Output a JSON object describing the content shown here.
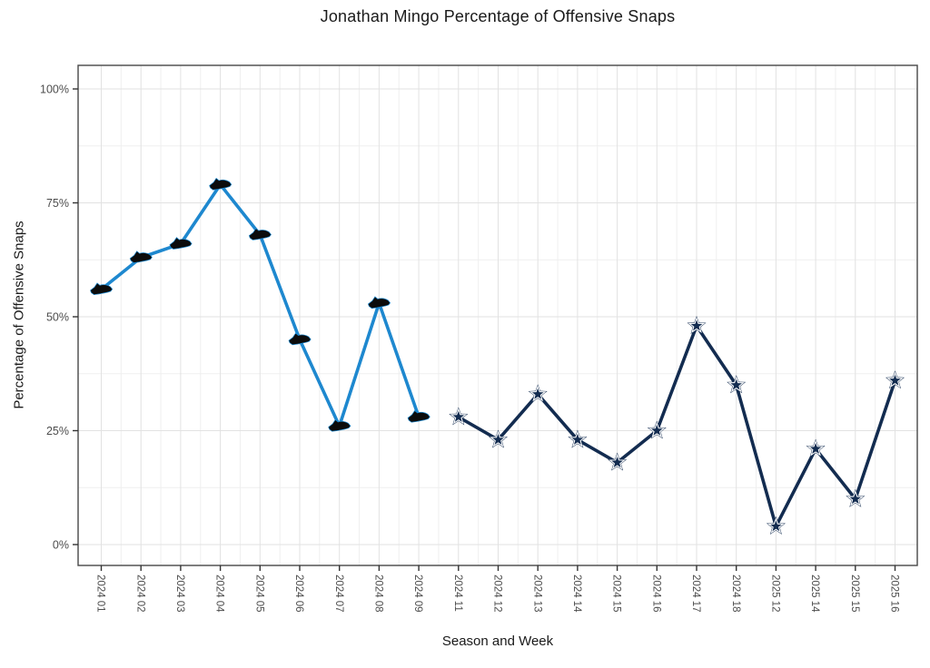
{
  "title": "Jonathan Mingo Percentage of Offensive Snaps",
  "chart_data": {
    "type": "line",
    "title": "Jonathan Mingo Percentage of Offensive Snaps",
    "xlabel": "Season and Week",
    "ylabel": "Percentage of Offensive Snaps",
    "ylim": [
      -4.5,
      105
    ],
    "ytick_values": [
      0,
      25,
      50,
      75,
      100
    ],
    "ytick_labels": [
      "0%",
      "25%",
      "50%",
      "75%",
      "100%"
    ],
    "grid": "major+minor",
    "legend": "none",
    "categories": [
      "2024 01",
      "2024 02",
      "2024 03",
      "2024 04",
      "2024 05",
      "2024 06",
      "2024 07",
      "2024 08",
      "2024 09",
      "2024 11",
      "2024 12",
      "2024 13",
      "2024 14",
      "2024 15",
      "2024 16",
      "2024 17",
      "2024 18",
      "2025 12",
      "2025 14",
      "2025 15",
      "2025 16"
    ],
    "series": [
      {
        "name": "panthers-era",
        "marker": "carolina-panthers-logo",
        "color": "#1e88cf",
        "start_index": 0,
        "values": [
          56,
          63,
          66,
          79,
          68,
          45,
          26,
          53,
          28
        ]
      },
      {
        "name": "cowboys-era",
        "marker": "dallas-cowboys-star-logo",
        "color": "#132c50",
        "start_index": 9,
        "values": [
          28,
          23,
          33,
          23,
          18,
          25,
          48,
          35,
          4,
          21,
          10,
          36
        ]
      }
    ],
    "colors": {
      "grid_major": "#e2e2e2",
      "grid_minor": "#efefef",
      "panel_border": "#474747",
      "tick_label": "#4d4d4d",
      "axis_title": "#1a1a1a",
      "panther_marker_fill": "#0c0c0c",
      "star_marker_fill": "#132c50",
      "star_marker_inline": "#ffffff"
    }
  }
}
